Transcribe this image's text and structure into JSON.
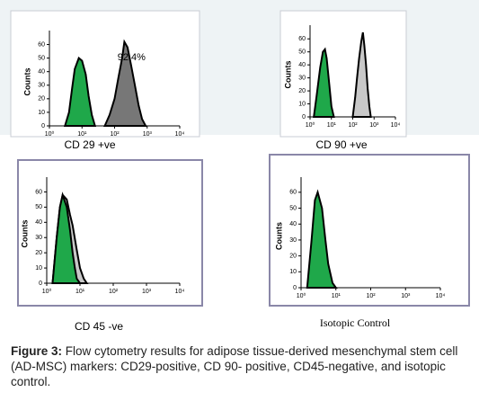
{
  "chart_data": [
    {
      "type": "area",
      "label": "CD 29 +ve",
      "y_label": "Counts",
      "annotation": "92.4%",
      "log_x": true,
      "xlim": [
        1,
        10000
      ],
      "xticks": [
        {
          "value": 1,
          "label": "10⁰"
        },
        {
          "value": 10,
          "label": "10¹"
        },
        {
          "value": 100,
          "label": "10²"
        },
        {
          "value": 1000,
          "label": "10³"
        },
        {
          "value": 10000,
          "label": "10⁴"
        }
      ],
      "ylim": [
        0,
        65
      ],
      "yticks": [
        0,
        10,
        20,
        30,
        40,
        50,
        60
      ],
      "series": [
        {
          "color": "#777777",
          "x": [
            50,
            70,
            100,
            130,
            170,
            200,
            250,
            320,
            420,
            550,
            700,
            900
          ],
          "values": [
            0,
            8,
            20,
            35,
            50,
            62,
            58,
            45,
            30,
            15,
            5,
            0
          ]
        },
        {
          "color": "#1fa84a",
          "x": [
            3,
            4,
            5,
            6,
            8,
            10,
            13,
            16,
            20,
            25
          ],
          "values": [
            0,
            10,
            28,
            42,
            50,
            48,
            38,
            22,
            8,
            0
          ]
        }
      ]
    },
    {
      "type": "area",
      "label": "CD 90   +ve",
      "y_label": "Counts",
      "log_x": true,
      "xlim": [
        1,
        10000
      ],
      "xticks": [
        {
          "value": 1,
          "label": "10⁰"
        },
        {
          "value": 10,
          "label": "10¹"
        },
        {
          "value": 100,
          "label": "10²"
        },
        {
          "value": 1000,
          "label": "10³"
        },
        {
          "value": 10000,
          "label": "10⁴"
        }
      ],
      "ylim": [
        0,
        65
      ],
      "yticks": [
        0,
        10,
        20,
        30,
        40,
        50,
        60
      ],
      "series": [
        {
          "color": "#c8c8c8",
          "x": [
            100,
            130,
            160,
            200,
            250,
            300,
            350,
            420,
            500,
            600,
            700
          ],
          "values": [
            0,
            15,
            30,
            45,
            58,
            65,
            55,
            40,
            22,
            8,
            0
          ]
        },
        {
          "color": "#1fa84a",
          "x": [
            1.5,
            2,
            3,
            4,
            5,
            6,
            8,
            10,
            13
          ],
          "values": [
            0,
            15,
            38,
            50,
            52,
            45,
            25,
            8,
            0
          ]
        }
      ]
    },
    {
      "type": "area",
      "label": "CD 45 -ve",
      "y_label": "Counts",
      "log_x": true,
      "xlim": [
        1,
        10000
      ],
      "xticks": [
        {
          "value": 1,
          "label": "10⁰"
        },
        {
          "value": 10,
          "label": "10¹"
        },
        {
          "value": 100,
          "label": "10²"
        },
        {
          "value": 1000,
          "label": "10³"
        },
        {
          "value": 10000,
          "label": "10⁴"
        }
      ],
      "ylim": [
        0,
        65
      ],
      "yticks": [
        0,
        10,
        20,
        30,
        40,
        50,
        60
      ],
      "series": [
        {
          "color": "#c8c8c8",
          "x": [
            1.5,
            2,
            2.5,
            3,
            4,
            5,
            6,
            8,
            10,
            13,
            16
          ],
          "values": [
            0,
            30,
            50,
            58,
            55,
            45,
            38,
            22,
            10,
            3,
            0
          ]
        },
        {
          "color": "#1fa84a",
          "x": [
            1.5,
            2,
            2.5,
            3,
            4,
            5,
            6,
            7,
            8,
            10
          ],
          "values": [
            0,
            30,
            50,
            58,
            50,
            35,
            20,
            10,
            3,
            0
          ]
        }
      ]
    },
    {
      "type": "area",
      "label": "Isotopic Control",
      "y_label": "Counts",
      "log_x": true,
      "xlim": [
        1,
        10000
      ],
      "xticks": [
        {
          "value": 1,
          "label": "10⁰"
        },
        {
          "value": 10,
          "label": "10¹"
        },
        {
          "value": 100,
          "label": "10²"
        },
        {
          "value": 1000,
          "label": "10³"
        },
        {
          "value": 10000,
          "label": "10⁴"
        }
      ],
      "ylim": [
        0,
        65
      ],
      "yticks": [
        0,
        10,
        20,
        30,
        40,
        50,
        60
      ],
      "series": [
        {
          "color": "#1fa84a",
          "x": [
            1.5,
            2,
            2.5,
            3,
            4,
            5,
            6,
            8,
            10
          ],
          "values": [
            0,
            30,
            55,
            60,
            50,
            30,
            15,
            3,
            0
          ]
        }
      ]
    }
  ],
  "caption": {
    "bold": "Figure 3:",
    "text": "Flow cytometry results for adipose tissue-derived mesenchymal stem cell (AD-MSC) markers: CD29-positive,  CD 90- positive,  CD45-negative, and  isotopic control."
  }
}
